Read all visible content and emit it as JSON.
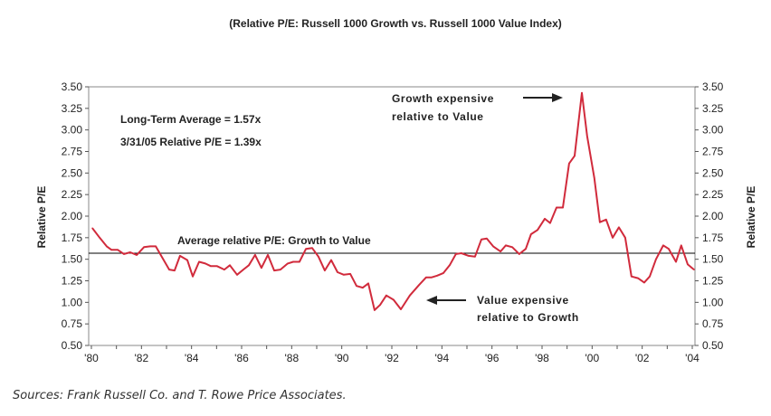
{
  "chart_data": {
    "type": "line",
    "title": "(Relative P/E: Russell 1000 Growth vs. Russell 1000 Value Index)",
    "ylabel": "Relative P/E",
    "ylabel_right": "Relative P/E",
    "xlabel": "",
    "ylim": [
      0.5,
      3.5
    ],
    "xlim": [
      1980,
      2004
    ],
    "yticks": [
      "0.50",
      "0.75",
      "1.00",
      "1.25",
      "1.50",
      "1.75",
      "2.00",
      "2.25",
      "2.50",
      "2.75",
      "3.00",
      "3.25",
      "3.50"
    ],
    "xticks": [
      {
        "v": 1980,
        "l": "'80"
      },
      {
        "v": 1982,
        "l": "'82"
      },
      {
        "v": 1984,
        "l": "'84"
      },
      {
        "v": 1986,
        "l": "'86"
      },
      {
        "v": 1988,
        "l": "'88"
      },
      {
        "v": 1990,
        "l": "'90"
      },
      {
        "v": 1992,
        "l": "'92"
      },
      {
        "v": 1994,
        "l": "'94"
      },
      {
        "v": 1996,
        "l": "'96"
      },
      {
        "v": 1998,
        "l": "'98"
      },
      {
        "v": 2000,
        "l": "'00"
      },
      {
        "v": 2002,
        "l": "'02"
      },
      {
        "v": 2004,
        "l": "'04"
      }
    ],
    "grid": false,
    "line_color": "#d12b3c",
    "average": 1.57,
    "average_label": "Average relative P/E: Growth to Value",
    "annotations": {
      "long_term": "Long-Term Average = 1.57x",
      "current": "3/31/05 Relative P/E = 1.39x",
      "growth_1": "Growth expensive",
      "growth_2": "relative to Value",
      "value_1": "Value expensive",
      "value_2": "relative to Growth"
    },
    "x": [
      1980.04,
      1980.33,
      1980.61,
      1980.8,
      1981.05,
      1981.3,
      1981.55,
      1981.81,
      1982.1,
      1982.35,
      1982.57,
      1983.11,
      1983.32,
      1983.54,
      1983.83,
      1984.05,
      1984.3,
      1984.55,
      1984.77,
      1985.02,
      1985.31,
      1985.53,
      1985.82,
      1986.07,
      1986.29,
      1986.54,
      1986.79,
      1987.05,
      1987.3,
      1987.55,
      1987.84,
      1988.06,
      1988.31,
      1988.57,
      1988.82,
      1989.07,
      1989.32,
      1989.58,
      1989.83,
      1990.08,
      1990.34,
      1990.59,
      1990.84,
      1991.06,
      1991.31,
      1991.53,
      1991.78,
      1992.07,
      1992.36,
      1992.72,
      1993.08,
      1993.37,
      1993.59,
      1993.81,
      1994.06,
      1994.31,
      1994.56,
      1994.78,
      1995.07,
      1995.32,
      1995.58,
      1995.79,
      1996.05,
      1996.34,
      1996.55,
      1996.81,
      1997.09,
      1997.35,
      1997.56,
      1997.82,
      1998.11,
      1998.32,
      1998.58,
      1998.83,
      1999.08,
      1999.3,
      1999.59,
      1999.8,
      2000.09,
      2000.31,
      2000.56,
      2000.82,
      2001.07,
      2001.32,
      2001.57,
      2001.83,
      2002.08,
      2002.3,
      2002.55,
      2002.84,
      2003.06,
      2003.35,
      2003.56,
      2003.82,
      2004.07
    ],
    "y": [
      1.86,
      1.75,
      1.65,
      1.61,
      1.61,
      1.56,
      1.58,
      1.55,
      1.64,
      1.65,
      1.65,
      1.38,
      1.37,
      1.54,
      1.49,
      1.3,
      1.47,
      1.45,
      1.42,
      1.42,
      1.38,
      1.43,
      1.32,
      1.38,
      1.43,
      1.55,
      1.4,
      1.55,
      1.37,
      1.38,
      1.45,
      1.47,
      1.47,
      1.62,
      1.63,
      1.53,
      1.37,
      1.49,
      1.35,
      1.32,
      1.33,
      1.19,
      1.17,
      1.22,
      0.91,
      0.97,
      1.08,
      1.03,
      0.92,
      1.08,
      1.2,
      1.29,
      1.29,
      1.31,
      1.34,
      1.43,
      1.56,
      1.57,
      1.54,
      1.53,
      1.73,
      1.74,
      1.65,
      1.59,
      1.66,
      1.64,
      1.56,
      1.62,
      1.79,
      1.84,
      1.97,
      1.92,
      2.1,
      2.1,
      2.61,
      2.7,
      3.43,
      2.93,
      2.44,
      1.93,
      1.96,
      1.75,
      1.87,
      1.75,
      1.3,
      1.28,
      1.23,
      1.3,
      1.5,
      1.66,
      1.62,
      1.47,
      1.66,
      1.44,
      1.38
    ]
  },
  "source": "Sources: Frank Russell Co. and T. Rowe Price Associates."
}
